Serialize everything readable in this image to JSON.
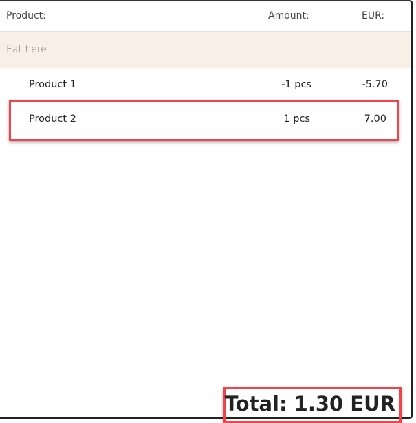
{
  "header": {
    "product": "Product:",
    "amount": "Amount:",
    "eur": "EUR:"
  },
  "group": {
    "label": "Eat here"
  },
  "rows": [
    {
      "name": "Product 1",
      "amount": "-1 pcs",
      "eur": "-5.70"
    },
    {
      "name": "Product 2",
      "amount": "1 pcs",
      "eur": "7.00"
    }
  ],
  "total": "Total: 1.30 EUR",
  "colors": {
    "highlight": "#f0444a",
    "group_bg": "#f8f0e7"
  }
}
